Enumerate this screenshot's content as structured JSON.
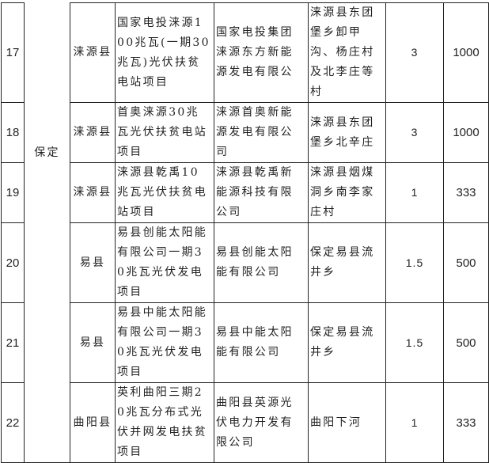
{
  "city": "保定",
  "rows": [
    {
      "no": "17",
      "county": "涞源县",
      "project": "国家电投涞源100兆瓦(一期30兆瓦)光伏扶贫电站项目",
      "company": "国家电投集团涞源东方新能源发电有限公",
      "location": "涞源县东团堡乡卸甲沟、杨庄村及北李庄等村",
      "capacity": "3",
      "households": "1000"
    },
    {
      "no": "18",
      "county": "涞源县",
      "project": "首奥涞源30兆瓦光伏扶贫电站项目",
      "company": "涞源首奥新能源发电有限公司",
      "location": "涞源县东团堡乡北辛庄",
      "capacity": "3",
      "households": "1000"
    },
    {
      "no": "19",
      "county": "涞源县",
      "project": "涞源县乾禹10兆瓦光伏扶贫电站项目",
      "company": "涞源县乾禹新能源科技有限公司",
      "location": "涞源县烟煤洞乡南李家庄村",
      "capacity": "1",
      "households": "333"
    },
    {
      "no": "20",
      "county": "易县",
      "project": "易县创能太阳能有限公司一期30兆瓦光伏发电项目",
      "company": "易县创能太阳能有限公司",
      "location": "保定易县流井乡",
      "capacity": "1.5",
      "households": "500"
    },
    {
      "no": "21",
      "county": "易县",
      "project": "易县中能太阳能有限公司一期30兆瓦光伏发电项目",
      "company": "易县中能太阳能有限公司",
      "location": "保定易县流井乡",
      "capacity": "1.5",
      "households": "500"
    },
    {
      "no": "22",
      "county": "曲阳县",
      "project": "英利曲阳三期20兆瓦分布式光伏并网发电扶贫项目",
      "company": "曲阳县英源光伏电力开发有限公司",
      "location": "曲阳下河",
      "capacity": "1",
      "households": "333"
    }
  ]
}
